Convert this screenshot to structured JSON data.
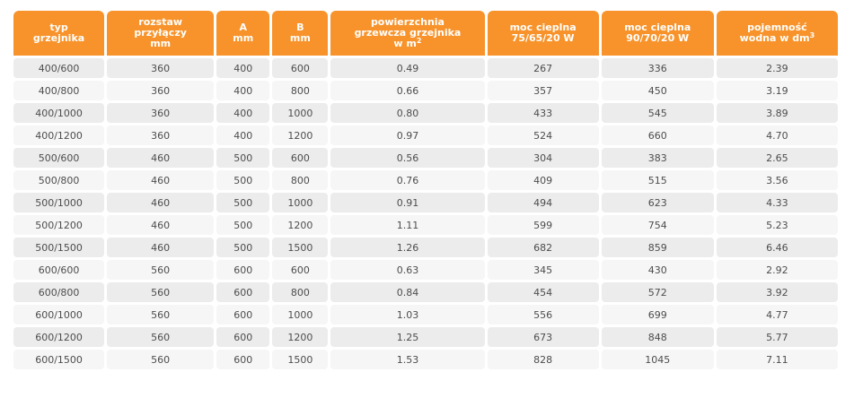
{
  "headers": [
    {
      "line1": "typ",
      "line2": "grzejnika",
      "line3": ""
    },
    {
      "line1": "rozstaw",
      "line2": "przyłączy",
      "line3": "mm"
    },
    {
      "line1": "A",
      "line2": "mm",
      "line3": ""
    },
    {
      "line1": "B",
      "line2": "mm",
      "line3": ""
    },
    {
      "line1": "powierzchnia",
      "line2": "grzewcza grzejnika",
      "line3": "w m",
      "sup": "2"
    },
    {
      "line1": "moc cieplna",
      "line2": "75/65/20 W",
      "line3": ""
    },
    {
      "line1": "moc cieplna",
      "line2": "90/70/20 W",
      "line3": ""
    },
    {
      "line1": "pojemność",
      "line2": "wodna w dm",
      "line3": "",
      "sup": "3"
    }
  ],
  "rows": [
    [
      "400/600",
      "360",
      "400",
      "600",
      "0.49",
      "267",
      "336",
      "2.39"
    ],
    [
      "400/800",
      "360",
      "400",
      "800",
      "0.66",
      "357",
      "450",
      "3.19"
    ],
    [
      "400/1000",
      "360",
      "400",
      "1000",
      "0.80",
      "433",
      "545",
      "3.89"
    ],
    [
      "400/1200",
      "360",
      "400",
      "1200",
      "0.97",
      "524",
      "660",
      "4.70"
    ],
    [
      "500/600",
      "460",
      "500",
      "600",
      "0.56",
      "304",
      "383",
      "2.65"
    ],
    [
      "500/800",
      "460",
      "500",
      "800",
      "0.76",
      "409",
      "515",
      "3.56"
    ],
    [
      "500/1000",
      "460",
      "500",
      "1000",
      "0.91",
      "494",
      "623",
      "4.33"
    ],
    [
      "500/1200",
      "460",
      "500",
      "1200",
      "1.11",
      "599",
      "754",
      "5.23"
    ],
    [
      "500/1500",
      "460",
      "500",
      "1500",
      "1.26",
      "682",
      "859",
      "6.46"
    ],
    [
      "600/600",
      "560",
      "600",
      "600",
      "0.63",
      "345",
      "430",
      "2.92"
    ],
    [
      "600/800",
      "560",
      "600",
      "800",
      "0.84",
      "454",
      "572",
      "3.92"
    ],
    [
      "600/1000",
      "560",
      "600",
      "1000",
      "1.03",
      "556",
      "699",
      "4.77"
    ],
    [
      "600/1200",
      "560",
      "600",
      "1200",
      "1.25",
      "673",
      "848",
      "5.77"
    ],
    [
      "600/1500",
      "560",
      "600",
      "1500",
      "1.53",
      "828",
      "1045",
      "7.11"
    ]
  ],
  "colors": {
    "header_bg": "#f7932a",
    "header_text": "#ffffff",
    "row_odd": "#ececec",
    "row_even": "#f6f6f6",
    "cell_text": "#4d4d4d"
  }
}
